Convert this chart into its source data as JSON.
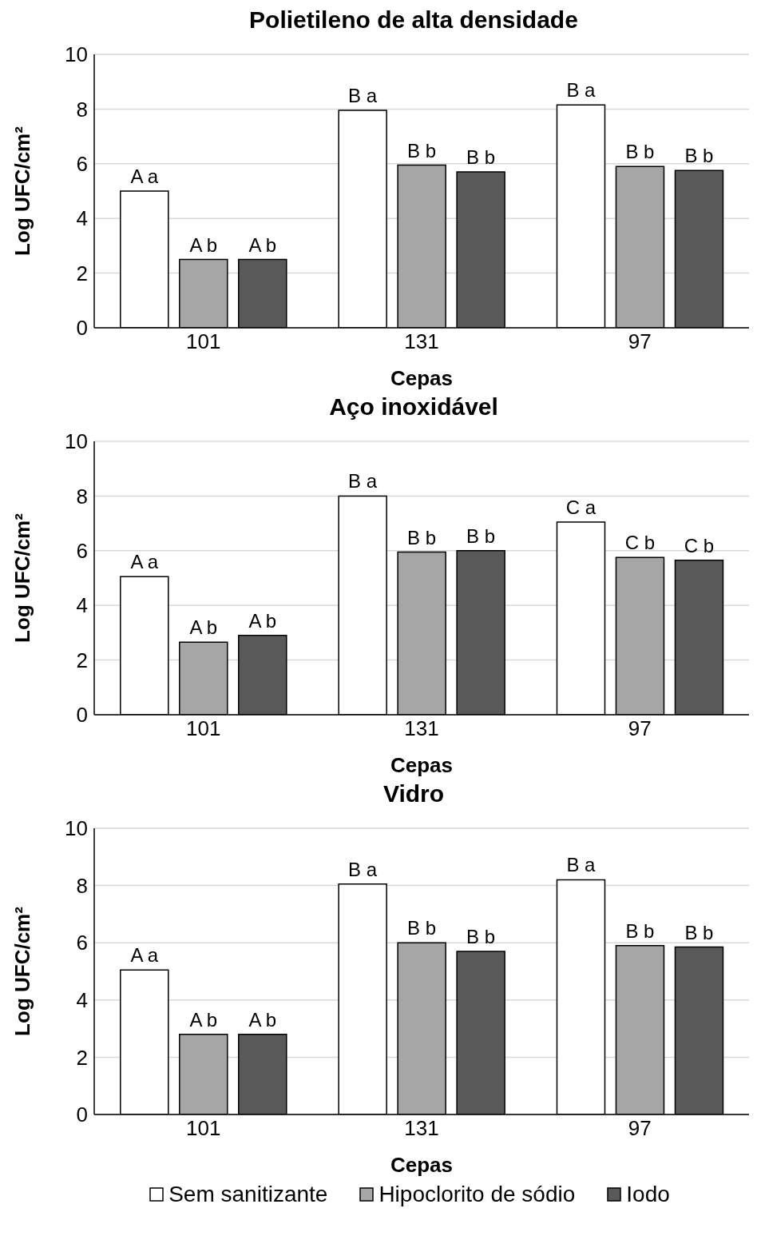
{
  "chart_data": [
    {
      "type": "bar",
      "title": "Polietileno de alta densidade",
      "xlabel": "Cepas",
      "ylabel": "Log UFC/cm²",
      "categories": [
        "101",
        "131",
        "97"
      ],
      "ylim": [
        0,
        10
      ],
      "yticks": [
        0,
        2,
        4,
        6,
        8,
        10
      ],
      "grid": "y",
      "legend": false,
      "series": [
        {
          "color": "#ffffff",
          "values": [
            5.0,
            7.95,
            8.15
          ],
          "value_labels": [
            "A a",
            "B a",
            "B a"
          ]
        },
        {
          "color": "#a6a6a6",
          "values": [
            2.5,
            5.95,
            5.9
          ],
          "value_labels": [
            "A b",
            "B b",
            "B b"
          ]
        },
        {
          "color": "#595959",
          "values": [
            2.5,
            5.7,
            5.75
          ],
          "value_labels": [
            "A b",
            "B b",
            "B b"
          ]
        }
      ]
    },
    {
      "type": "bar",
      "title": "Aço inoxidável",
      "xlabel": "Cepas",
      "ylabel": "Log UFC/cm²",
      "categories": [
        "101",
        "131",
        "97"
      ],
      "ylim": [
        0,
        10
      ],
      "yticks": [
        0,
        2,
        4,
        6,
        8,
        10
      ],
      "grid": "y",
      "legend": false,
      "series": [
        {
          "color": "#ffffff",
          "values": [
            5.05,
            8.0,
            7.05
          ],
          "value_labels": [
            "A a",
            "B a",
            "C a"
          ]
        },
        {
          "color": "#a6a6a6",
          "values": [
            2.65,
            5.95,
            5.75
          ],
          "value_labels": [
            "A b",
            "B b",
            "C b"
          ]
        },
        {
          "color": "#595959",
          "values": [
            2.9,
            6.0,
            5.65
          ],
          "value_labels": [
            "A b",
            "B b",
            "C b"
          ]
        }
      ]
    },
    {
      "type": "bar",
      "title": "Vidro",
      "xlabel": "Cepas",
      "ylabel": "Log UFC/cm²",
      "categories": [
        "101",
        "131",
        "97"
      ],
      "ylim": [
        0,
        10
      ],
      "yticks": [
        0,
        2,
        4,
        6,
        8,
        10
      ],
      "grid": "y",
      "legend": "bottom",
      "series": [
        {
          "name": "Sem sanitizante",
          "color": "#ffffff",
          "values": [
            5.05,
            8.05,
            8.2
          ],
          "value_labels": [
            "A a",
            "B a",
            "B a"
          ]
        },
        {
          "name": "Hipoclorito de sódio",
          "color": "#a6a6a6",
          "values": [
            2.8,
            6.0,
            5.9
          ],
          "value_labels": [
            "A b",
            "B b",
            "B b"
          ]
        },
        {
          "name": "Iodo",
          "color": "#595959",
          "values": [
            2.8,
            5.7,
            5.85
          ],
          "value_labels": [
            "A b",
            "B b",
            "B b"
          ]
        }
      ]
    }
  ]
}
